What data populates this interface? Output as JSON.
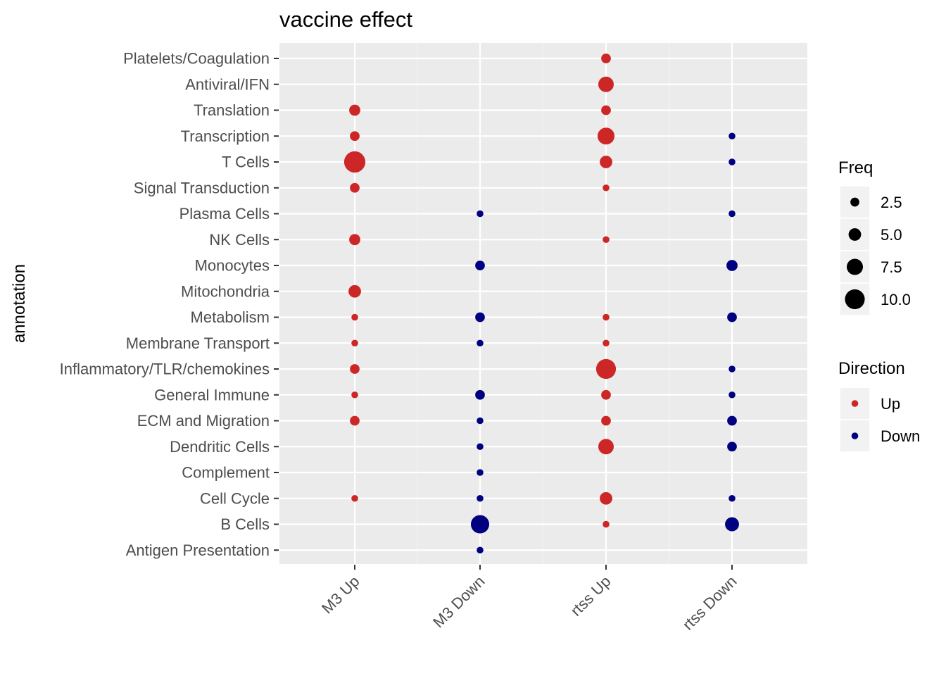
{
  "chart_data": {
    "type": "scatter",
    "title": "vaccine effect",
    "xlabel": "",
    "ylabel": "annotation",
    "x_categories": [
      "M3 Up",
      "M3 Down",
      "rtss Up",
      "rtss Down"
    ],
    "y_categories": [
      "Antigen Presentation",
      "B Cells",
      "Cell Cycle",
      "Complement",
      "Dendritic Cells",
      "ECM and Migration",
      "General Immune",
      "Inflammatory/TLR/chemokines",
      "Membrane Transport",
      "Metabolism",
      "Mitochondria",
      "Monocytes",
      "NK Cells",
      "Plasma Cells",
      "Signal Transduction",
      "T Cells",
      "Transcription",
      "Translation",
      "Antiviral/IFN",
      "Platelets/Coagulation"
    ],
    "colors": {
      "Up": "#cd2626",
      "Down": "#000080"
    },
    "points": [
      {
        "x": "M3 Up",
        "y": "Translation",
        "freq": 4,
        "direction": "Up"
      },
      {
        "x": "M3 Up",
        "y": "Transcription",
        "freq": 3,
        "direction": "Up"
      },
      {
        "x": "M3 Up",
        "y": "T Cells",
        "freq": 11,
        "direction": "Up"
      },
      {
        "x": "M3 Up",
        "y": "Signal Transduction",
        "freq": 3,
        "direction": "Up"
      },
      {
        "x": "M3 Up",
        "y": "NK Cells",
        "freq": 4,
        "direction": "Up"
      },
      {
        "x": "M3 Up",
        "y": "Mitochondria",
        "freq": 5,
        "direction": "Up"
      },
      {
        "x": "M3 Up",
        "y": "Metabolism",
        "freq": 1,
        "direction": "Up"
      },
      {
        "x": "M3 Up",
        "y": "Membrane Transport",
        "freq": 1,
        "direction": "Up"
      },
      {
        "x": "M3 Up",
        "y": "Inflammatory/TLR/chemokines",
        "freq": 3,
        "direction": "Up"
      },
      {
        "x": "M3 Up",
        "y": "General Immune",
        "freq": 1,
        "direction": "Up"
      },
      {
        "x": "M3 Up",
        "y": "ECM and Migration",
        "freq": 3,
        "direction": "Up"
      },
      {
        "x": "M3 Up",
        "y": "Cell Cycle",
        "freq": 1,
        "direction": "Up"
      },
      {
        "x": "M3 Down",
        "y": "Plasma Cells",
        "freq": 1,
        "direction": "Down"
      },
      {
        "x": "M3 Down",
        "y": "Monocytes",
        "freq": 3,
        "direction": "Down"
      },
      {
        "x": "M3 Down",
        "y": "Metabolism",
        "freq": 3,
        "direction": "Down"
      },
      {
        "x": "M3 Down",
        "y": "Membrane Transport",
        "freq": 1,
        "direction": "Down"
      },
      {
        "x": "M3 Down",
        "y": "General Immune",
        "freq": 3,
        "direction": "Down"
      },
      {
        "x": "M3 Down",
        "y": "ECM and Migration",
        "freq": 1,
        "direction": "Down"
      },
      {
        "x": "M3 Down",
        "y": "Dendritic Cells",
        "freq": 1,
        "direction": "Down"
      },
      {
        "x": "M3 Down",
        "y": "Complement",
        "freq": 1,
        "direction": "Down"
      },
      {
        "x": "M3 Down",
        "y": "Cell Cycle",
        "freq": 1,
        "direction": "Down"
      },
      {
        "x": "M3 Down",
        "y": "B Cells",
        "freq": 9,
        "direction": "Down"
      },
      {
        "x": "M3 Down",
        "y": "Antigen Presentation",
        "freq": 1,
        "direction": "Down"
      },
      {
        "x": "rtss Up",
        "y": "Platelets/Coagulation",
        "freq": 3,
        "direction": "Up"
      },
      {
        "x": "rtss Up",
        "y": "Antiviral/IFN",
        "freq": 7,
        "direction": "Up"
      },
      {
        "x": "rtss Up",
        "y": "Translation",
        "freq": 3,
        "direction": "Up"
      },
      {
        "x": "rtss Up",
        "y": "Transcription",
        "freq": 8,
        "direction": "Up"
      },
      {
        "x": "rtss Up",
        "y": "T Cells",
        "freq": 5,
        "direction": "Up"
      },
      {
        "x": "rtss Up",
        "y": "Signal Transduction",
        "freq": 1,
        "direction": "Up"
      },
      {
        "x": "rtss Up",
        "y": "NK Cells",
        "freq": 1,
        "direction": "Up"
      },
      {
        "x": "rtss Up",
        "y": "Metabolism",
        "freq": 1,
        "direction": "Up"
      },
      {
        "x": "rtss Up",
        "y": "Membrane Transport",
        "freq": 1,
        "direction": "Up"
      },
      {
        "x": "rtss Up",
        "y": "Inflammatory/TLR/chemokines",
        "freq": 10,
        "direction": "Up"
      },
      {
        "x": "rtss Up",
        "y": "General Immune",
        "freq": 3,
        "direction": "Up"
      },
      {
        "x": "rtss Up",
        "y": "ECM and Migration",
        "freq": 3,
        "direction": "Up"
      },
      {
        "x": "rtss Up",
        "y": "Dendritic Cells",
        "freq": 7,
        "direction": "Up"
      },
      {
        "x": "rtss Up",
        "y": "Cell Cycle",
        "freq": 5,
        "direction": "Up"
      },
      {
        "x": "rtss Up",
        "y": "B Cells",
        "freq": 1,
        "direction": "Up"
      },
      {
        "x": "rtss Down",
        "y": "Transcription",
        "freq": 1,
        "direction": "Down"
      },
      {
        "x": "rtss Down",
        "y": "T Cells",
        "freq": 1,
        "direction": "Down"
      },
      {
        "x": "rtss Down",
        "y": "Plasma Cells",
        "freq": 1,
        "direction": "Down"
      },
      {
        "x": "rtss Down",
        "y": "Monocytes",
        "freq": 4,
        "direction": "Down"
      },
      {
        "x": "rtss Down",
        "y": "Metabolism",
        "freq": 3,
        "direction": "Down"
      },
      {
        "x": "rtss Down",
        "y": "Inflammatory/TLR/chemokines",
        "freq": 1,
        "direction": "Down"
      },
      {
        "x": "rtss Down",
        "y": "General Immune",
        "freq": 1,
        "direction": "Down"
      },
      {
        "x": "rtss Down",
        "y": "ECM and Migration",
        "freq": 3,
        "direction": "Down"
      },
      {
        "x": "rtss Down",
        "y": "Dendritic Cells",
        "freq": 3,
        "direction": "Down"
      },
      {
        "x": "rtss Down",
        "y": "Cell Cycle",
        "freq": 1,
        "direction": "Down"
      },
      {
        "x": "rtss Down",
        "y": "B Cells",
        "freq": 6,
        "direction": "Down"
      }
    ],
    "legend": {
      "size_title": "Freq",
      "size_breaks": [
        {
          "value": 2.5,
          "label": "2.5"
        },
        {
          "value": 5.0,
          "label": "5.0"
        },
        {
          "value": 7.5,
          "label": "7.5"
        },
        {
          "value": 10.0,
          "label": "10.0"
        }
      ],
      "color_title": "Direction",
      "color_entries": [
        {
          "name": "Up",
          "label": "Up"
        },
        {
          "name": "Down",
          "label": "Down"
        }
      ],
      "placement": "right"
    },
    "grid": true
  }
}
